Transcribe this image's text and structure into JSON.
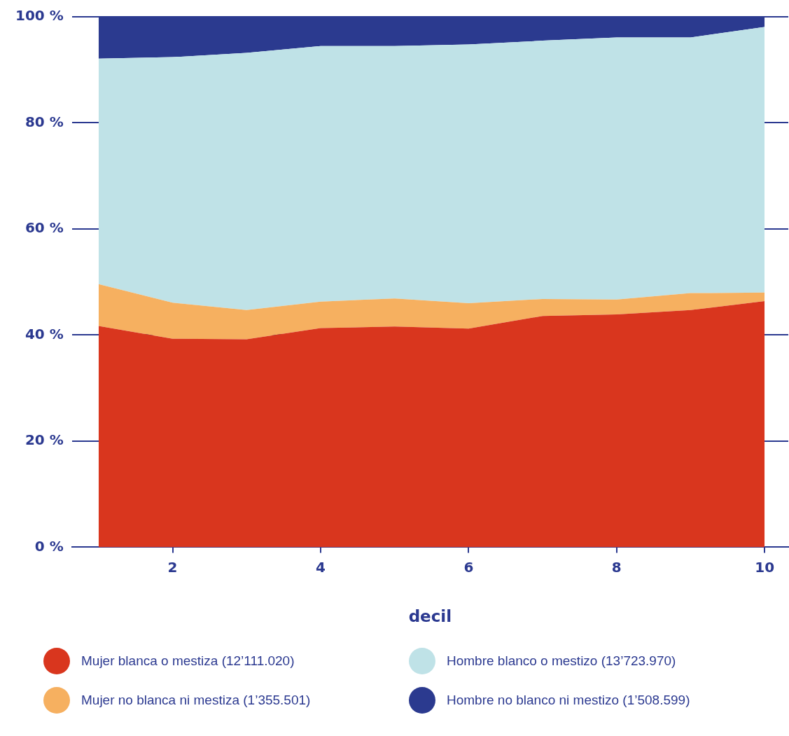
{
  "chart_data": {
    "type": "area",
    "stacked": true,
    "xlabel": "decil",
    "x": [
      1,
      2,
      3,
      4,
      5,
      6,
      7,
      8,
      9,
      10
    ],
    "xlim": [
      0.64,
      10.32
    ],
    "xticks": [
      2,
      4,
      6,
      8,
      10
    ],
    "ylim": [
      0,
      100
    ],
    "yticks": [
      {
        "value": 0,
        "label": "0 %"
      },
      {
        "value": 20,
        "label": "20 %"
      },
      {
        "value": 40,
        "label": "40 %"
      },
      {
        "value": 60,
        "label": "60 %"
      },
      {
        "value": 80,
        "label": "80 %"
      },
      {
        "value": 100,
        "label": "100 %"
      }
    ],
    "grid": "y",
    "legend": "bottom",
    "series": [
      {
        "name": "Mujer blanca o mestiza (12’111.020)",
        "color": "#d9361e",
        "values": [
          41.7,
          39.3,
          39.2,
          41.3,
          41.6,
          41.2,
          43.6,
          43.9,
          44.7,
          46.4
        ]
      },
      {
        "name": "Mujer no blanca ni mestiza (1’355.501)",
        "color": "#f6b060",
        "values": [
          7.9,
          6.8,
          5.5,
          5.0,
          5.3,
          4.8,
          3.2,
          2.8,
          3.2,
          1.6
        ]
      },
      {
        "name": "Hombre blanco o mestizo (13’723.970)",
        "color": "#bfe2e7",
        "values": [
          42.5,
          46.3,
          48.5,
          48.2,
          47.6,
          48.8,
          48.7,
          49.4,
          48.2,
          50.1
        ]
      },
      {
        "name": "Hombre no blanco ni mestizo (1’508.599)",
        "color": "#2b3a8f",
        "values": [
          7.9,
          7.6,
          6.8,
          5.5,
          5.5,
          5.2,
          4.5,
          3.9,
          3.9,
          1.9
        ]
      }
    ]
  }
}
